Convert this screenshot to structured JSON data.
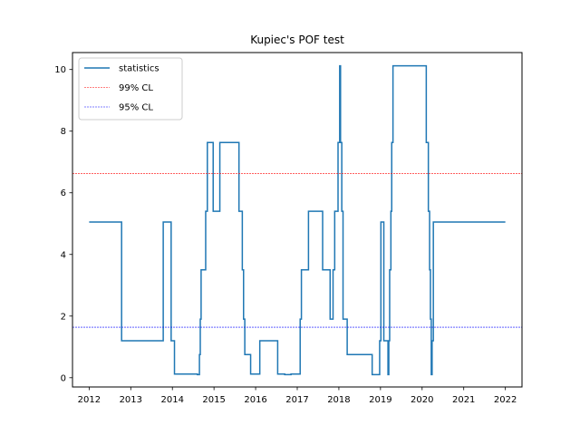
{
  "chart_data": {
    "type": "line",
    "title": "Kupiec's POF test",
    "xlabel": "",
    "ylabel": "",
    "xlim": [
      2011.6,
      2022.4
    ],
    "ylim": [
      -0.3,
      10.55
    ],
    "x_ticks": [
      2012,
      2013,
      2014,
      2015,
      2016,
      2017,
      2018,
      2019,
      2020,
      2021,
      2022
    ],
    "x_tick_labels": [
      "2012",
      "2013",
      "2014",
      "2015",
      "2016",
      "2017",
      "2018",
      "2019",
      "2020",
      "2021",
      "2022"
    ],
    "y_ticks": [
      0,
      2,
      4,
      6,
      8,
      10
    ],
    "y_tick_labels": [
      "0",
      "2",
      "4",
      "6",
      "8",
      "10"
    ],
    "grid": false,
    "legend_placement": "top-left",
    "series": [
      {
        "name": "statistics",
        "color": "#1f77b4",
        "step": true,
        "points": [
          [
            2012.0,
            5.05
          ],
          [
            2012.78,
            5.05
          ],
          [
            2012.78,
            1.2
          ],
          [
            2013.78,
            1.2
          ],
          [
            2013.78,
            5.05
          ],
          [
            2013.97,
            5.05
          ],
          [
            2013.97,
            1.2
          ],
          [
            2014.05,
            1.2
          ],
          [
            2014.05,
            0.12
          ],
          [
            2014.6,
            0.12
          ],
          [
            2014.6,
            0.1
          ],
          [
            2014.65,
            0.1
          ],
          [
            2014.65,
            0.75
          ],
          [
            2014.67,
            0.75
          ],
          [
            2014.67,
            1.9
          ],
          [
            2014.69,
            1.9
          ],
          [
            2014.69,
            3.5
          ],
          [
            2014.8,
            3.5
          ],
          [
            2014.8,
            5.4
          ],
          [
            2014.84,
            5.4
          ],
          [
            2014.84,
            7.63
          ],
          [
            2014.98,
            7.63
          ],
          [
            2014.98,
            5.4
          ],
          [
            2015.14,
            5.4
          ],
          [
            2015.14,
            7.63
          ],
          [
            2015.6,
            7.63
          ],
          [
            2015.6,
            5.4
          ],
          [
            2015.68,
            5.4
          ],
          [
            2015.68,
            3.5
          ],
          [
            2015.71,
            3.5
          ],
          [
            2015.71,
            1.9
          ],
          [
            2015.74,
            1.9
          ],
          [
            2015.74,
            0.75
          ],
          [
            2015.88,
            0.75
          ],
          [
            2015.88,
            0.12
          ],
          [
            2016.1,
            0.12
          ],
          [
            2016.1,
            1.2
          ],
          [
            2016.53,
            1.2
          ],
          [
            2016.53,
            0.12
          ],
          [
            2016.7,
            0.12
          ],
          [
            2016.7,
            0.1
          ],
          [
            2016.85,
            0.1
          ],
          [
            2016.85,
            0.12
          ],
          [
            2017.07,
            0.12
          ],
          [
            2017.07,
            1.9
          ],
          [
            2017.1,
            1.9
          ],
          [
            2017.1,
            3.5
          ],
          [
            2017.27,
            3.5
          ],
          [
            2017.27,
            5.4
          ],
          [
            2017.61,
            5.4
          ],
          [
            2017.61,
            3.5
          ],
          [
            2017.79,
            3.5
          ],
          [
            2017.79,
            1.9
          ],
          [
            2017.86,
            1.9
          ],
          [
            2017.86,
            3.5
          ],
          [
            2017.9,
            3.5
          ],
          [
            2017.9,
            5.4
          ],
          [
            2017.98,
            5.4
          ],
          [
            2017.98,
            7.63
          ],
          [
            2018.02,
            7.63
          ],
          [
            2018.02,
            10.12
          ],
          [
            2018.04,
            10.12
          ],
          [
            2018.04,
            7.63
          ],
          [
            2018.07,
            7.63
          ],
          [
            2018.07,
            5.4
          ],
          [
            2018.1,
            5.4
          ],
          [
            2018.1,
            1.9
          ],
          [
            2018.2,
            1.9
          ],
          [
            2018.2,
            0.75
          ],
          [
            2018.8,
            0.75
          ],
          [
            2018.8,
            0.1
          ],
          [
            2018.98,
            0.1
          ],
          [
            2018.98,
            1.2
          ],
          [
            2019.01,
            1.2
          ],
          [
            2019.01,
            5.05
          ],
          [
            2019.08,
            5.05
          ],
          [
            2019.08,
            1.2
          ],
          [
            2019.18,
            1.2
          ],
          [
            2019.18,
            0.1
          ],
          [
            2019.2,
            0.1
          ],
          [
            2019.2,
            1.2
          ],
          [
            2019.22,
            1.2
          ],
          [
            2019.22,
            3.5
          ],
          [
            2019.25,
            3.5
          ],
          [
            2019.25,
            5.4
          ],
          [
            2019.27,
            5.4
          ],
          [
            2019.27,
            7.63
          ],
          [
            2019.3,
            7.63
          ],
          [
            2019.3,
            10.12
          ],
          [
            2020.1,
            10.12
          ],
          [
            2020.1,
            7.63
          ],
          [
            2020.15,
            7.63
          ],
          [
            2020.15,
            5.4
          ],
          [
            2020.18,
            5.4
          ],
          [
            2020.18,
            3.5
          ],
          [
            2020.2,
            3.5
          ],
          [
            2020.2,
            1.9
          ],
          [
            2020.22,
            1.9
          ],
          [
            2020.22,
            0.1
          ],
          [
            2020.24,
            0.1
          ],
          [
            2020.24,
            1.2
          ],
          [
            2020.27,
            1.2
          ],
          [
            2020.27,
            5.05
          ],
          [
            2022.0,
            5.05
          ]
        ]
      },
      {
        "name": "99% CL",
        "color": "#ff0000",
        "style": "dashed",
        "y": 6.63
      },
      {
        "name": "95% CL",
        "color": "#0000ff",
        "style": "dashed",
        "y": 1.64
      }
    ]
  }
}
